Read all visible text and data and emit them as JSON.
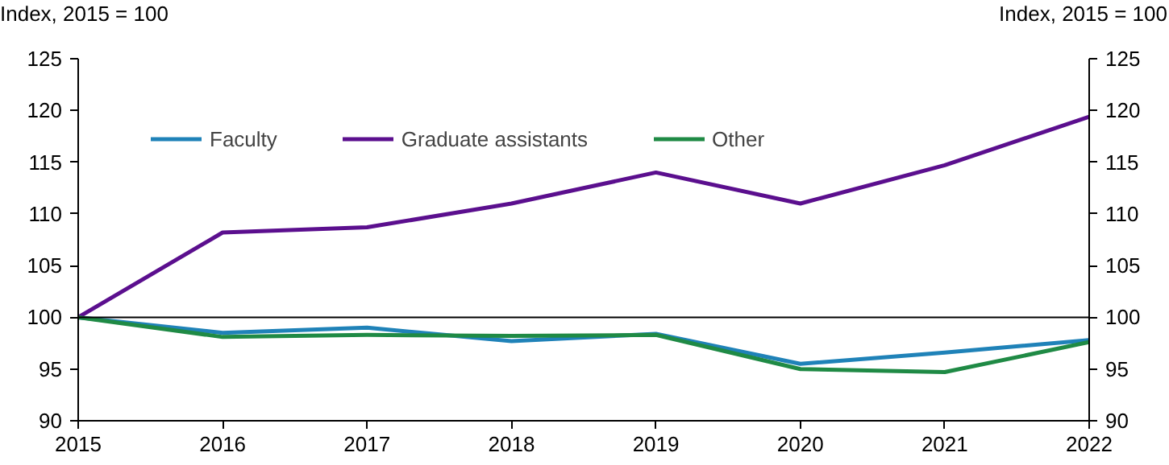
{
  "chart_data": {
    "type": "line",
    "ylabel": "Index, 2015 = 100",
    "y2label": "Index, 2015 = 100",
    "x": [
      2015,
      2016,
      2017,
      2018,
      2019,
      2020,
      2021,
      2022
    ],
    "xlim": [
      2015,
      2022
    ],
    "xticks": [
      2015,
      2016,
      2017,
      2018,
      2019,
      2020,
      2021,
      2022
    ],
    "ylim": [
      90,
      125
    ],
    "yticks": [
      90,
      95,
      100,
      105,
      110,
      115,
      120,
      125
    ],
    "y2lim": [
      90,
      125
    ],
    "y2ticks": [
      90,
      95,
      100,
      105,
      110,
      115,
      120,
      125
    ],
    "grid": false,
    "legend": "top left",
    "line_style": "solid",
    "marker": "none",
    "ref_lines": [
      {
        "axis": "y",
        "value": 100,
        "color": "#000000"
      }
    ],
    "series": [
      {
        "name": "Faculty",
        "color": "#1f82b8",
        "values": [
          100,
          98.5,
          99,
          97.7,
          98.4,
          95.5,
          96.6,
          97.8
        ]
      },
      {
        "name": "Graduate assistants",
        "color": "#5b0f8e",
        "values": [
          100,
          108.2,
          108.7,
          111,
          114,
          111,
          114.7,
          119.4
        ]
      },
      {
        "name": "Other",
        "color": "#1f8a45",
        "values": [
          100,
          98.1,
          98.3,
          98.2,
          98.3,
          95,
          94.7,
          97.6
        ]
      }
    ]
  }
}
